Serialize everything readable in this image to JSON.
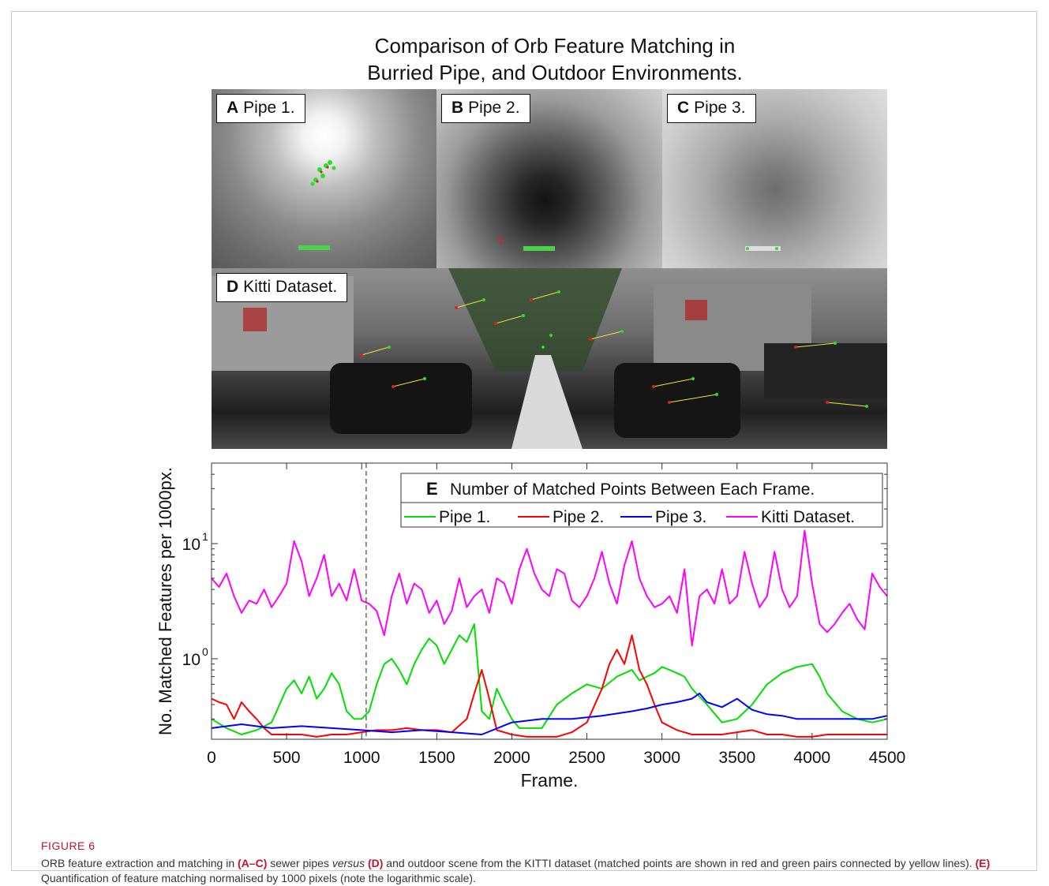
{
  "figure": {
    "title_line1": "Comparison of Orb Feature Matching in",
    "title_line2": "Burried Pipe, and Outdoor Environments.",
    "panels": [
      {
        "letter": "A",
        "label": "Pipe 1."
      },
      {
        "letter": "B",
        "label": "Pipe 2."
      },
      {
        "letter": "C",
        "label": "Pipe 3."
      },
      {
        "letter": "D",
        "label": "Kitti Dataset."
      }
    ]
  },
  "chart_data": {
    "type": "line",
    "panel_letter": "E",
    "legend_title": "Number of Matched Points Between Each Frame.",
    "xlabel": "Frame.",
    "ylabel": "No. Matched Features per 1000px.",
    "xlim": [
      0,
      4500
    ],
    "ylim": [
      0.2,
      50
    ],
    "yscale": "log",
    "xticks": [
      0,
      500,
      1000,
      1500,
      2000,
      2500,
      3000,
      3500,
      4000,
      4500
    ],
    "yticks": [
      {
        "value": 1,
        "base": "10",
        "exp": "0"
      },
      {
        "value": 10,
        "base": "10",
        "exp": "1"
      }
    ],
    "vline_x": 1030,
    "legend_placement": "top-right",
    "grid": false,
    "series": [
      {
        "name": "Pipe 1.",
        "color": "#00e000",
        "x": [
          0,
          100,
          200,
          300,
          400,
          500,
          550,
          600,
          650,
          700,
          750,
          800,
          850,
          900,
          950,
          1000,
          1050,
          1100,
          1150,
          1200,
          1250,
          1300,
          1350,
          1400,
          1450,
          1500,
          1550,
          1600,
          1650,
          1700,
          1750,
          1800,
          1850,
          1900,
          1950,
          2000,
          2050,
          2100,
          2200,
          2300,
          2400,
          2500,
          2600,
          2700,
          2800,
          2850,
          2900,
          2950,
          3000,
          3050,
          3100,
          3150,
          3200,
          3300,
          3400,
          3500,
          3600,
          3700,
          3800,
          3900,
          4000,
          4050,
          4100,
          4200,
          4300,
          4400,
          4500
        ],
        "y": [
          0.3,
          0.25,
          0.22,
          0.24,
          0.28,
          0.55,
          0.65,
          0.5,
          0.7,
          0.45,
          0.55,
          0.75,
          0.6,
          0.35,
          0.3,
          0.3,
          0.35,
          0.6,
          0.9,
          1.0,
          0.8,
          0.6,
          0.9,
          1.2,
          1.5,
          1.3,
          0.9,
          1.2,
          1.6,
          1.4,
          2.0,
          0.35,
          0.3,
          0.55,
          0.4,
          0.3,
          0.25,
          0.25,
          0.25,
          0.4,
          0.5,
          0.6,
          0.55,
          0.7,
          0.8,
          0.65,
          0.7,
          0.75,
          0.85,
          0.8,
          0.75,
          0.7,
          0.55,
          0.4,
          0.28,
          0.3,
          0.4,
          0.6,
          0.75,
          0.85,
          0.9,
          0.7,
          0.5,
          0.35,
          0.3,
          0.28,
          0.3
        ]
      },
      {
        "name": "Pipe 2.",
        "color": "#ff0000",
        "x": [
          0,
          50,
          100,
          150,
          200,
          250,
          300,
          350,
          400,
          500,
          600,
          700,
          800,
          900,
          1000,
          1100,
          1200,
          1300,
          1400,
          1500,
          1600,
          1700,
          1750,
          1800,
          1850,
          1900,
          2000,
          2100,
          2200,
          2300,
          2400,
          2500,
          2600,
          2650,
          2700,
          2750,
          2800,
          2850,
          2900,
          2950,
          3000,
          3100,
          3200,
          3300,
          3400,
          3500,
          3600,
          3700,
          3800,
          3900,
          4000,
          4100,
          4200,
          4300,
          4400,
          4500
        ],
        "y": [
          0.45,
          0.42,
          0.4,
          0.3,
          0.42,
          0.35,
          0.3,
          0.25,
          0.22,
          0.22,
          0.22,
          0.21,
          0.22,
          0.22,
          0.23,
          0.24,
          0.24,
          0.25,
          0.24,
          0.24,
          0.23,
          0.3,
          0.5,
          0.8,
          0.45,
          0.24,
          0.22,
          0.21,
          0.21,
          0.21,
          0.23,
          0.28,
          0.55,
          0.9,
          1.2,
          0.9,
          1.6,
          0.8,
          0.6,
          0.4,
          0.28,
          0.24,
          0.22,
          0.22,
          0.22,
          0.23,
          0.24,
          0.22,
          0.22,
          0.21,
          0.21,
          0.22,
          0.22,
          0.22,
          0.22,
          0.22
        ]
      },
      {
        "name": "Pipe 3.",
        "color": "#0000ff",
        "x": [
          0,
          200,
          400,
          600,
          800,
          1000,
          1200,
          1400,
          1600,
          1800,
          2000,
          2200,
          2400,
          2600,
          2800,
          2900,
          3000,
          3100,
          3200,
          3250,
          3300,
          3400,
          3500,
          3600,
          3700,
          3800,
          3900,
          4000,
          4200,
          4400,
          4500
        ],
        "y": [
          0.25,
          0.27,
          0.25,
          0.26,
          0.25,
          0.24,
          0.23,
          0.24,
          0.23,
          0.22,
          0.28,
          0.3,
          0.3,
          0.32,
          0.35,
          0.37,
          0.4,
          0.42,
          0.45,
          0.5,
          0.42,
          0.38,
          0.45,
          0.36,
          0.33,
          0.32,
          0.3,
          0.3,
          0.3,
          0.3,
          0.32
        ]
      },
      {
        "name": "Kitti Dataset.",
        "color": "#ff00ff",
        "x": [
          0,
          50,
          100,
          150,
          200,
          250,
          300,
          350,
          400,
          450,
          500,
          550,
          600,
          650,
          700,
          750,
          800,
          850,
          900,
          950,
          1000,
          1050,
          1100,
          1150,
          1200,
          1250,
          1300,
          1350,
          1400,
          1450,
          1500,
          1550,
          1600,
          1650,
          1700,
          1750,
          1800,
          1850,
          1900,
          1950,
          2000,
          2050,
          2100,
          2150,
          2200,
          2250,
          2300,
          2350,
          2400,
          2450,
          2500,
          2550,
          2600,
          2650,
          2700,
          2750,
          2800,
          2850,
          2900,
          2950,
          3000,
          3050,
          3100,
          3150,
          3200,
          3250,
          3300,
          3350,
          3400,
          3450,
          3500,
          3550,
          3600,
          3650,
          3700,
          3750,
          3800,
          3850,
          3900,
          3950,
          4000,
          4050,
          4100,
          4150,
          4200,
          4250,
          4300,
          4350,
          4400,
          4450,
          4500
        ],
        "y": [
          5,
          4.2,
          5.5,
          3.5,
          2.5,
          3.2,
          3.0,
          4.0,
          2.8,
          3.5,
          4.5,
          10.5,
          7,
          3.5,
          5,
          8,
          3.5,
          4.5,
          3.2,
          6,
          3.2,
          3.0,
          2.6,
          1.6,
          3.5,
          5.5,
          3.0,
          4.5,
          4.0,
          2.5,
          3.2,
          2.0,
          2.6,
          5.0,
          2.8,
          3.5,
          4.0,
          2.5,
          5.0,
          4.5,
          3.0,
          6.0,
          9.0,
          5.5,
          4.0,
          3.5,
          6.0,
          5.5,
          3.2,
          2.8,
          3.5,
          5.0,
          8.5,
          4.5,
          3.0,
          6.5,
          10.5,
          5.0,
          3.5,
          2.8,
          3.0,
          3.5,
          2.5,
          6.0,
          1.3,
          3.5,
          4.0,
          3.0,
          6.0,
          3.0,
          3.5,
          8.5,
          4.5,
          2.8,
          3.5,
          8.5,
          4.0,
          2.8,
          3.5,
          13,
          4.5,
          2.0,
          1.7,
          2.0,
          2.5,
          3.0,
          2.2,
          1.8,
          5.5,
          4.2,
          3.5
        ]
      }
    ]
  },
  "caption": {
    "label": "FIGURE 6",
    "t1": "ORB feature extraction and matching in ",
    "b1": "(A–C)",
    "t2": " sewer pipes ",
    "i1": "versus",
    "t3": " ",
    "b2": "(D)",
    "t4": " and outdoor scene from the KITTI dataset (matched points are shown in red and green pairs connected by yellow lines). ",
    "b3": "(E)",
    "t5": " Quantification of feature matching normalised by 1000 pixels (note the logarithmic scale)."
  }
}
